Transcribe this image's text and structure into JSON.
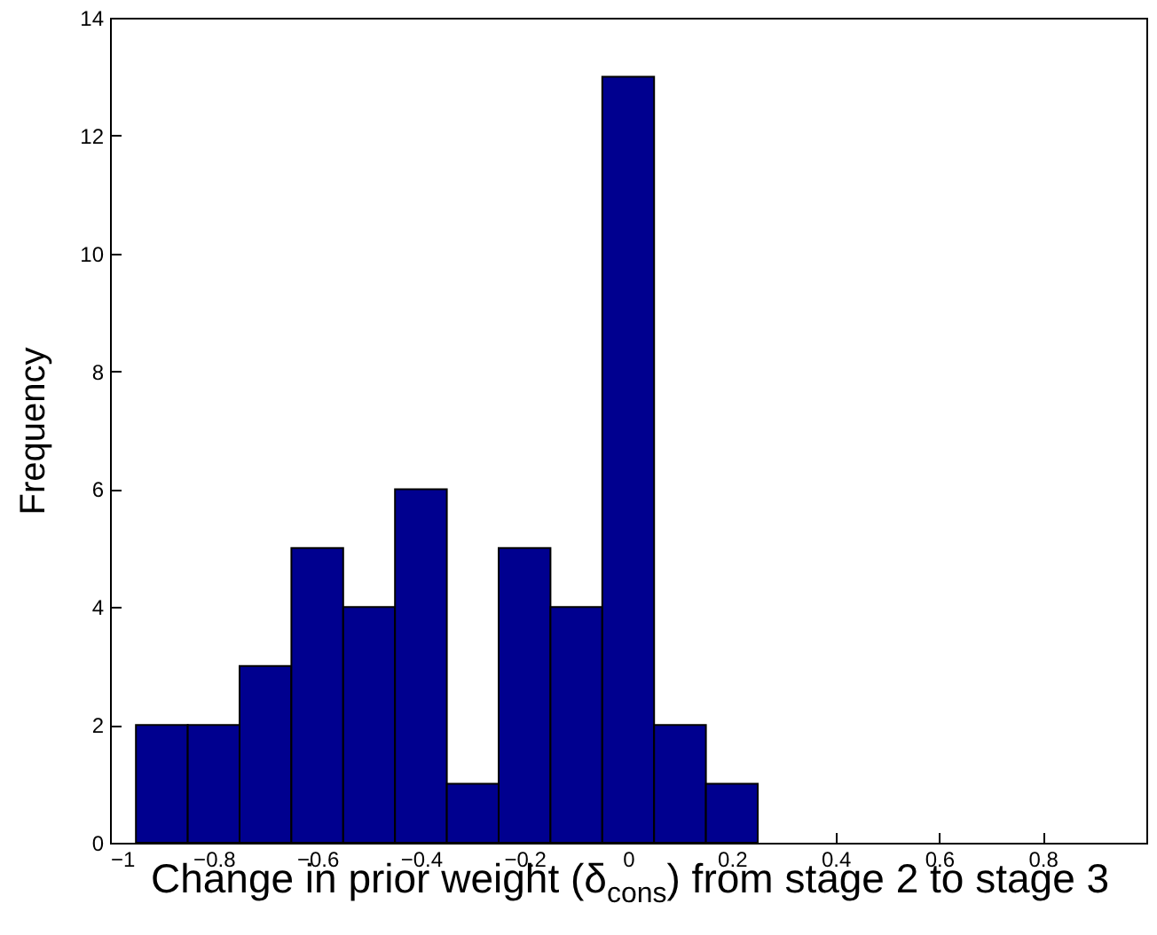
{
  "chart_data": {
    "type": "histogram",
    "xlabel": "Change in prior weight (δ$_{cons}$) from stage 2 to stage 3",
    "ylabel": "Frequency",
    "bins": [
      -0.95,
      -0.85,
      -0.75,
      -0.65,
      -0.55,
      -0.45,
      -0.35,
      -0.25,
      -0.15,
      -0.05,
      0.05,
      0.15,
      0.25
    ],
    "values": [
      2,
      2,
      3,
      5,
      4,
      6,
      1,
      5,
      4,
      13,
      2,
      1
    ],
    "color": "#00008f",
    "xlim": [
      -1,
      1
    ],
    "xticks": [
      {
        "value": -1,
        "label": "−1"
      },
      {
        "value": -0.8,
        "label": "−0.8"
      },
      {
        "value": -0.6,
        "label": "−0.6"
      },
      {
        "value": -0.4,
        "label": "−0.4"
      },
      {
        "value": -0.2,
        "label": "−0.2"
      },
      0,
      0.2,
      0.4,
      0.6,
      0.8,
      {
        "value": 1,
        "label": null
      }
    ],
    "ylim": [
      0,
      14
    ],
    "yticks": [
      0,
      2,
      4,
      6,
      8,
      10,
      12,
      14
    ],
    "grid": false
  }
}
